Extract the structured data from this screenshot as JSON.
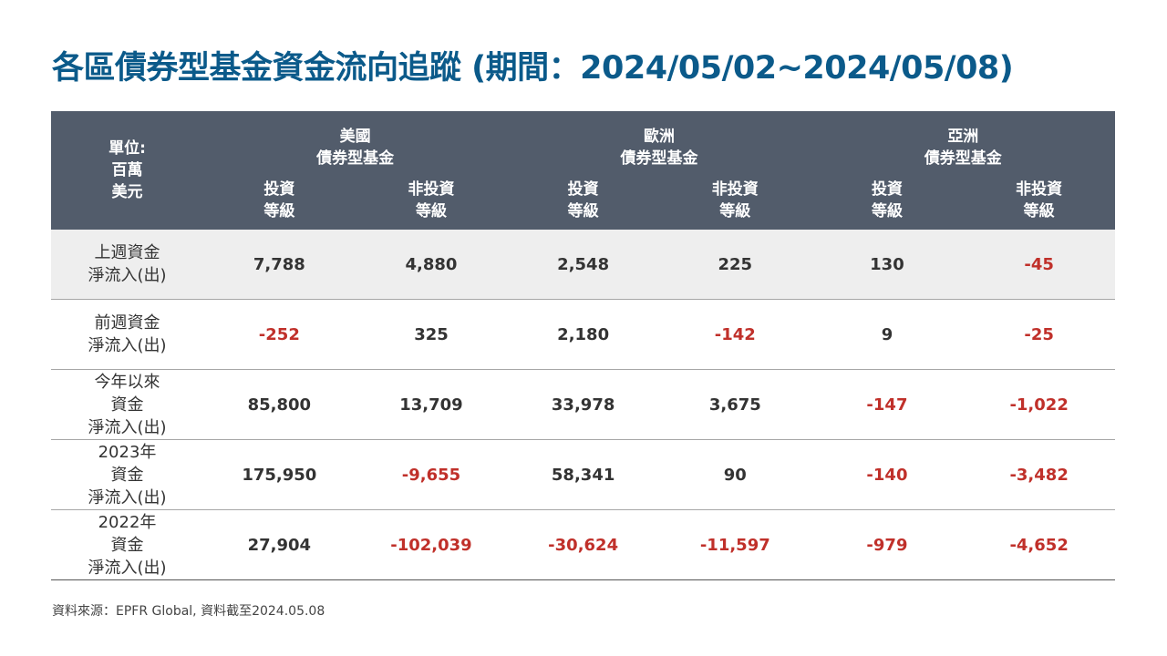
{
  "title": "各區債券型基金資金流向追蹤 (期間：2024/05/02~2024/05/08)",
  "header": {
    "unit_lines": [
      "單位:",
      "百萬",
      "美元"
    ],
    "groups": [
      {
        "line1": "美國",
        "line2": "債券型基金"
      },
      {
        "line1": "歐洲",
        "line2": "債券型基金"
      },
      {
        "line1": "亞洲",
        "line2": "債券型基金"
      }
    ],
    "sub": [
      {
        "line1": "投資",
        "line2": "等級"
      },
      {
        "line1": "非投資",
        "line2": "等級"
      },
      {
        "line1": "投資",
        "line2": "等級"
      },
      {
        "line1": "非投資",
        "line2": "等級"
      },
      {
        "line1": "投資",
        "line2": "等級"
      },
      {
        "line1": "非投資",
        "line2": "等級"
      }
    ]
  },
  "rows": [
    {
      "label": [
        "上週資金",
        "淨流入(出)"
      ],
      "values": [
        "7,788",
        "4,880",
        "2,548",
        "225",
        "130",
        "-45"
      ]
    },
    {
      "label": [
        "前週資金",
        "淨流入(出)"
      ],
      "values": [
        "-252",
        "325",
        "2,180",
        "-142",
        "9",
        "-25"
      ]
    },
    {
      "label": [
        "今年以來",
        "資金",
        "淨流入(出)"
      ],
      "values": [
        "85,800",
        "13,709",
        "33,978",
        "3,675",
        "-147",
        "-1,022"
      ]
    },
    {
      "label": [
        "2023年",
        "資金",
        "淨流入(出)"
      ],
      "values": [
        "175,950",
        "-9,655",
        "58,341",
        "90",
        "-140",
        "-3,482"
      ]
    },
    {
      "label": [
        "2022年",
        "資金",
        "淨流入(出)"
      ],
      "values": [
        "27,904",
        "-102,039",
        "-30,624",
        "-11,597",
        "-979",
        "-4,652"
      ]
    }
  ],
  "colors": {
    "title": "#0b5a8a",
    "header_bg": "#525c6b",
    "negative": "#c0302a",
    "shaded_row": "#eeeeee"
  },
  "source": "資料來源：EPFR Global, 資料截至2024.05.08"
}
